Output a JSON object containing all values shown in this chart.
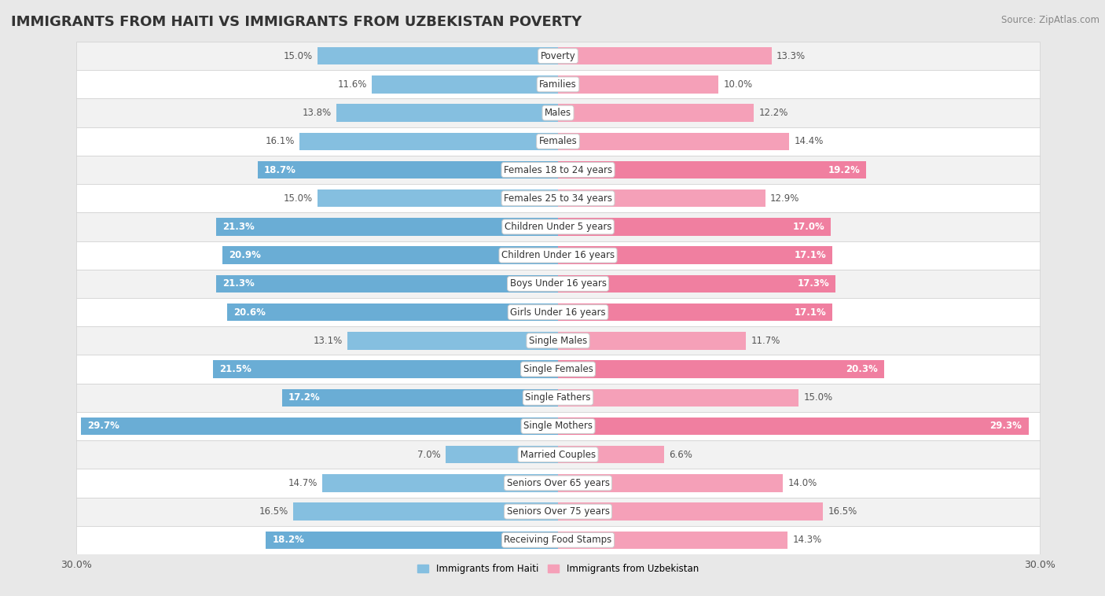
{
  "title": "IMMIGRANTS FROM HAITI VS IMMIGRANTS FROM UZBEKISTAN POVERTY",
  "source": "Source: ZipAtlas.com",
  "categories": [
    "Poverty",
    "Families",
    "Males",
    "Females",
    "Females 18 to 24 years",
    "Females 25 to 34 years",
    "Children Under 5 years",
    "Children Under 16 years",
    "Boys Under 16 years",
    "Girls Under 16 years",
    "Single Males",
    "Single Females",
    "Single Fathers",
    "Single Mothers",
    "Married Couples",
    "Seniors Over 65 years",
    "Seniors Over 75 years",
    "Receiving Food Stamps"
  ],
  "haiti_values": [
    15.0,
    11.6,
    13.8,
    16.1,
    18.7,
    15.0,
    21.3,
    20.9,
    21.3,
    20.6,
    13.1,
    21.5,
    17.2,
    29.7,
    7.0,
    14.7,
    16.5,
    18.2
  ],
  "uzbekistan_values": [
    13.3,
    10.0,
    12.2,
    14.4,
    19.2,
    12.9,
    17.0,
    17.1,
    17.3,
    17.1,
    11.7,
    20.3,
    15.0,
    29.3,
    6.6,
    14.0,
    16.5,
    14.3
  ],
  "haiti_color": "#85bfe0",
  "uzbekistan_color": "#f5a0b8",
  "haiti_highlight": "#6aadd5",
  "uzbekistan_highlight": "#f07fa0",
  "haiti_label": "Immigrants from Haiti",
  "uzbekistan_label": "Immigrants from Uzbekistan",
  "max_value": 30.0,
  "background_color": "#e8e8e8",
  "row_bg_even": "#f2f2f2",
  "row_bg_odd": "#ffffff",
  "title_fontsize": 13,
  "source_fontsize": 8.5,
  "label_fontsize": 8.5,
  "value_fontsize": 8.5,
  "axis_label_fontsize": 9,
  "highlight_threshold": 17.0
}
